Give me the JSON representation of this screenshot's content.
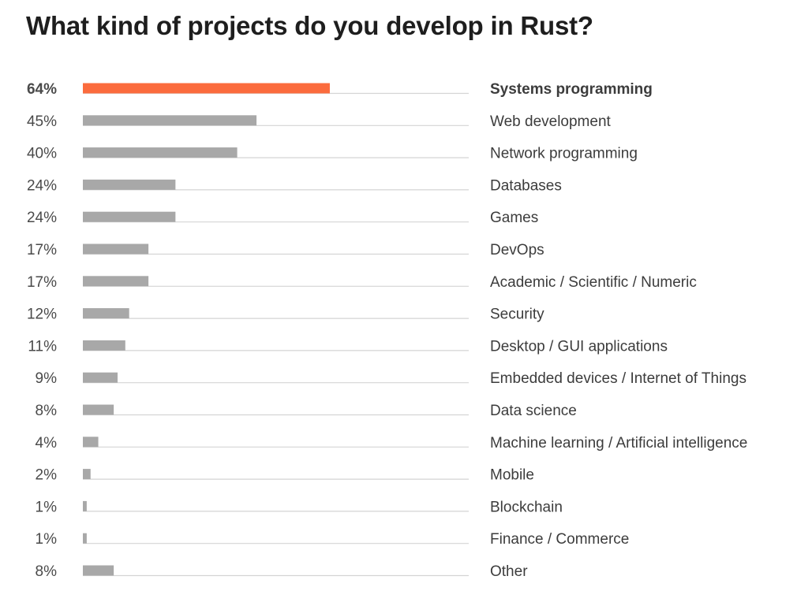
{
  "chart_data": {
    "type": "bar",
    "orientation": "horizontal",
    "title": "What kind of projects do you develop in Rust?",
    "value_format": "percent",
    "xlim": [
      0,
      100
    ],
    "grid": false,
    "legend": "none",
    "categories": [
      "Systems programming",
      "Web development",
      "Network programming",
      "Databases",
      "Games",
      "DevOps",
      "Academic / Scientific / Numeric",
      "Security",
      "Desktop / GUI applications",
      "Embedded devices / Internet of Things",
      "Data science",
      "Machine learning / Artificial intelligence",
      "Mobile",
      "Blockchain",
      "Finance / Commerce",
      "Other"
    ],
    "values": [
      64,
      45,
      40,
      24,
      24,
      17,
      17,
      12,
      11,
      9,
      8,
      4,
      2,
      1,
      1,
      8
    ],
    "labels": [
      "64%",
      "45%",
      "40%",
      "24%",
      "24%",
      "17%",
      "17%",
      "12%",
      "11%",
      "9%",
      "8%",
      "4%",
      "2%",
      "1%",
      "1%",
      "8%"
    ],
    "highlight_index": 0
  },
  "colors": {
    "highlight": "#fb6b3d",
    "bar": "#a8a8a8",
    "track": "#d4d4d4",
    "title": "#1e1e1e",
    "text": "#3c3c3c"
  }
}
